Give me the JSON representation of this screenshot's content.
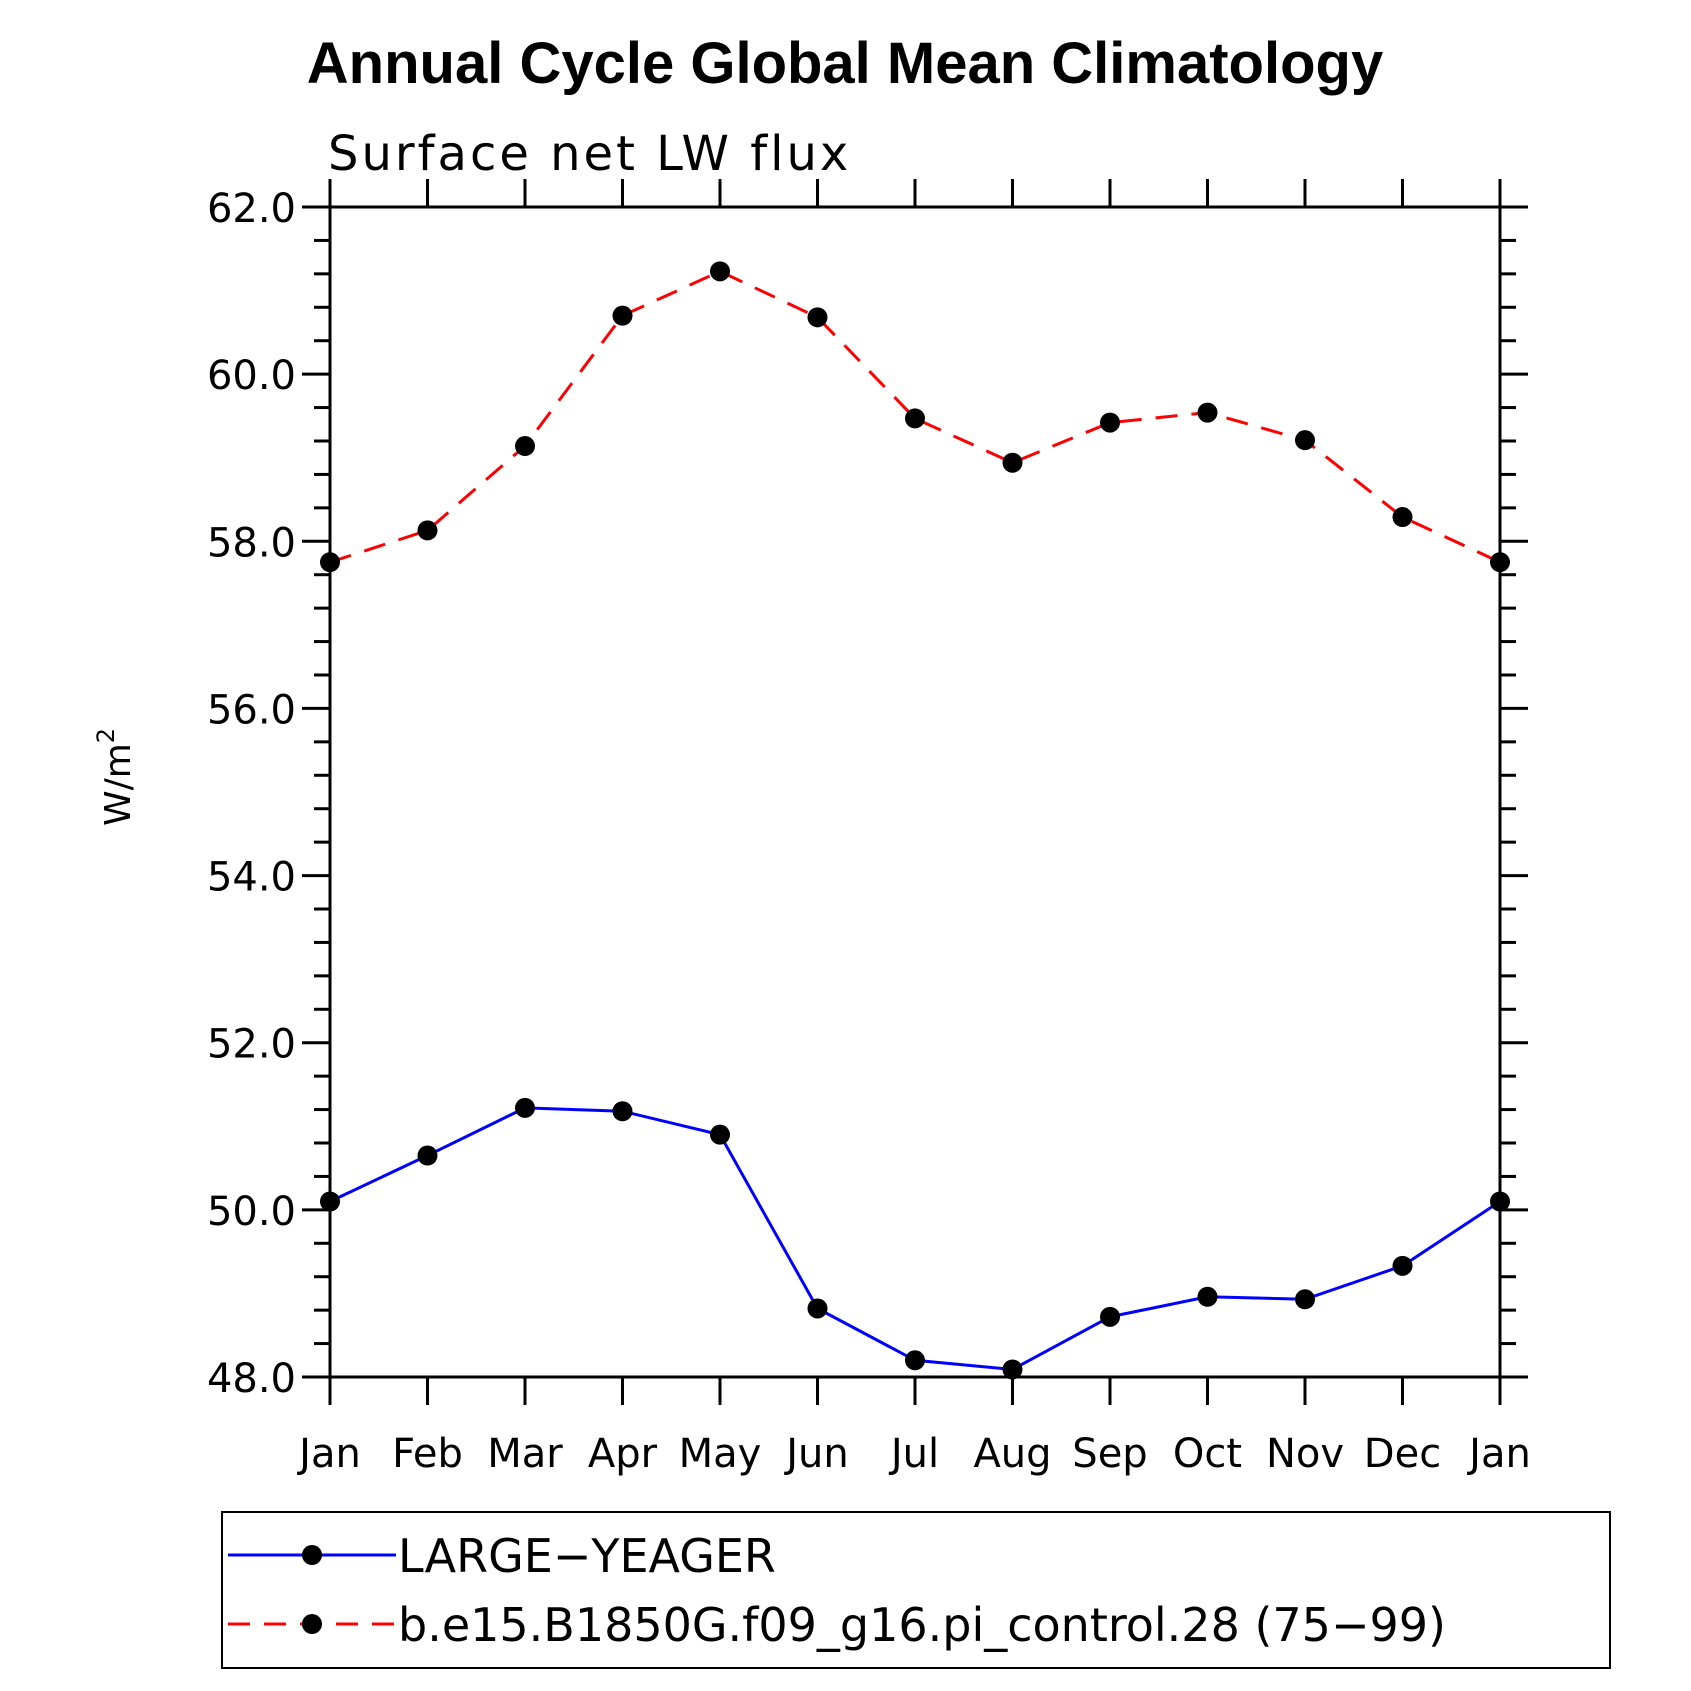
{
  "chart_data": {
    "type": "line",
    "title": "Annual Cycle Global Mean Climatology",
    "subtitle": "Surface net LW flux",
    "ylabel": "W/m",
    "ylabel_superscript": "2",
    "xlabel": "",
    "categories": [
      "Jan",
      "Feb",
      "Mar",
      "Apr",
      "May",
      "Jun",
      "Jul",
      "Aug",
      "Sep",
      "Oct",
      "Nov",
      "Dec",
      "Jan"
    ],
    "ylim": [
      48.0,
      62.0
    ],
    "yticks": [
      "48.0",
      "50.0",
      "52.0",
      "54.0",
      "56.0",
      "58.0",
      "60.0",
      "62.0"
    ],
    "grid": false,
    "legend_position": "bottom",
    "series": [
      {
        "name": "LARGE−YEAGER",
        "color": "#0000ff",
        "style": "solid",
        "marker": "circle",
        "values": [
          50.1,
          50.65,
          51.22,
          51.18,
          50.9,
          48.82,
          48.2,
          48.09,
          48.72,
          48.96,
          48.93,
          49.33,
          50.1
        ]
      },
      {
        "name": "b.e15.B1850G.f09_g16.pi_control.28 (75−99)",
        "color": "#ff0000",
        "style": "dashed",
        "marker": "circle",
        "values": [
          57.75,
          58.13,
          59.14,
          60.7,
          61.23,
          60.68,
          59.47,
          58.94,
          59.42,
          59.54,
          59.21,
          58.29,
          57.75
        ]
      }
    ]
  }
}
